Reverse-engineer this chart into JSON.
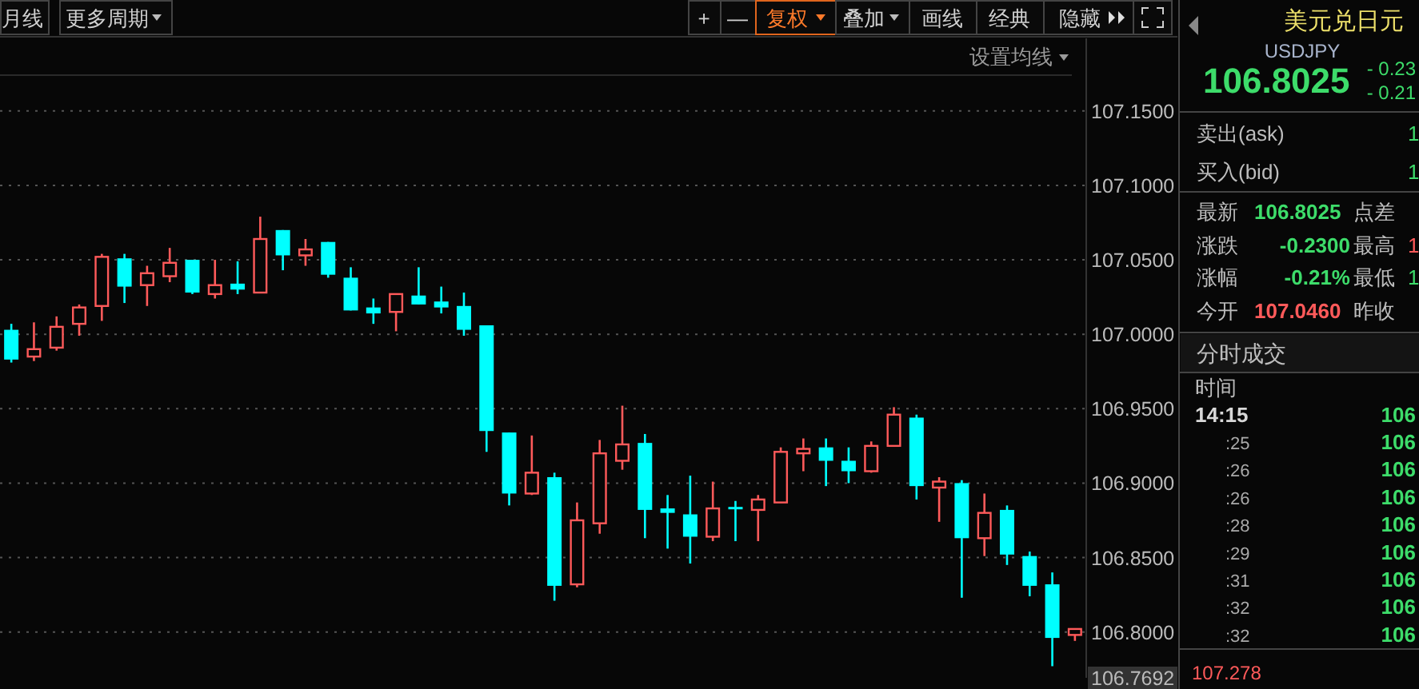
{
  "chart_data": [
    {
      "type": "candlestick",
      "categories": [
        null,
        null,
        null,
        null,
        null,
        null,
        null,
        null,
        null,
        null,
        null,
        null,
        null,
        null,
        null,
        null,
        null,
        null,
        null,
        null,
        null,
        null,
        null,
        null,
        null,
        null,
        null,
        null,
        null,
        null,
        null,
        null,
        null,
        null,
        null,
        null,
        null,
        null,
        null,
        null,
        null,
        null,
        null,
        null,
        null,
        null,
        null,
        null
      ],
      "ohlc": [
        [
          107.003,
          107.007,
          106.981,
          106.983
        ],
        [
          106.985,
          107.008,
          106.982,
          106.99
        ],
        [
          106.991,
          107.012,
          106.989,
          107.005
        ],
        [
          107.007,
          107.02,
          106.999,
          107.018
        ],
        [
          107.019,
          107.054,
          107.009,
          107.052
        ],
        [
          107.051,
          107.054,
          107.021,
          107.032
        ],
        [
          107.033,
          107.046,
          107.019,
          107.041
        ],
        [
          107.039,
          107.058,
          107.035,
          107.048
        ],
        [
          107.05,
          107.05,
          107.027,
          107.028
        ],
        [
          107.027,
          107.05,
          107.024,
          107.033
        ],
        [
          107.034,
          107.049,
          107.027,
          107.03
        ],
        [
          107.028,
          107.079,
          107.028,
          107.064
        ],
        [
          107.07,
          107.07,
          107.043,
          107.053
        ],
        [
          107.053,
          107.064,
          107.046,
          107.057
        ],
        [
          107.062,
          107.062,
          107.038,
          107.04
        ],
        [
          107.038,
          107.045,
          107.016,
          107.016
        ],
        [
          107.018,
          107.024,
          107.007,
          107.014
        ],
        [
          107.015,
          107.027,
          107.002,
          107.027
        ],
        [
          107.026,
          107.045,
          107.02,
          107.02
        ],
        [
          107.022,
          107.032,
          107.014,
          107.018
        ],
        [
          107.019,
          107.028,
          106.999,
          107.003
        ],
        [
          107.006,
          107.006,
          106.921,
          106.935
        ],
        [
          106.934,
          106.934,
          106.885,
          106.893
        ],
        [
          106.893,
          106.932,
          106.892,
          106.907
        ],
        [
          106.904,
          106.907,
          106.821,
          106.831
        ],
        [
          106.832,
          106.887,
          106.83,
          106.875
        ],
        [
          106.873,
          106.929,
          106.866,
          106.92
        ],
        [
          106.915,
          106.952,
          106.909,
          106.926
        ],
        [
          106.927,
          106.933,
          106.863,
          106.882
        ],
        [
          106.883,
          106.892,
          106.856,
          106.88
        ],
        [
          106.879,
          106.905,
          106.846,
          106.864
        ],
        [
          106.864,
          106.901,
          106.861,
          106.883
        ],
        [
          106.884,
          106.888,
          106.861,
          106.883
        ],
        [
          106.882,
          106.892,
          106.861,
          106.889
        ],
        [
          106.887,
          106.924,
          106.887,
          106.921
        ],
        [
          106.92,
          106.93,
          106.908,
          106.923
        ],
        [
          106.924,
          106.93,
          106.898,
          106.915
        ],
        [
          106.915,
          106.924,
          106.9,
          106.908
        ],
        [
          106.908,
          106.928,
          106.907,
          106.925
        ],
        [
          106.925,
          106.951,
          106.925,
          106.946
        ],
        [
          106.944,
          106.946,
          106.889,
          106.898
        ],
        [
          106.897,
          106.904,
          106.874,
          106.901
        ],
        [
          106.9,
          106.902,
          106.823,
          106.863
        ],
        [
          106.863,
          106.893,
          106.851,
          106.88
        ],
        [
          106.882,
          106.885,
          106.845,
          106.852
        ],
        [
          106.851,
          106.854,
          106.824,
          106.831
        ],
        [
          106.832,
          106.84,
          106.777,
          106.796
        ],
        [
          106.798,
          106.802,
          106.794,
          106.802
        ]
      ],
      "colors": [
        "#00ffff",
        "#ff5a5a",
        "#ff5a5a",
        "#ff5a5a",
        "#ff5a5a",
        "#00ffff",
        "#ff5a5a",
        "#ff5a5a",
        "#00ffff",
        "#ff5a5a",
        "#00ffff",
        "#ff5a5a",
        "#00ffff",
        "#ff5a5a",
        "#00ffff",
        "#00ffff",
        "#00ffff",
        "#ff5a5a",
        "#00ffff",
        "#00ffff",
        "#00ffff",
        "#00ffff",
        "#00ffff",
        "#ff5a5a",
        "#00ffff",
        "#ff5a5a",
        "#ff5a5a",
        "#ff5a5a",
        "#00ffff",
        "#00ffff",
        "#00ffff",
        "#ff5a5a",
        "#00ffff",
        "#ff5a5a",
        "#ff5a5a",
        "#ff5a5a",
        "#00ffff",
        "#00ffff",
        "#ff5a5a",
        "#ff5a5a",
        "#00ffff",
        "#ff5a5a",
        "#00ffff",
        "#ff5a5a",
        "#00ffff",
        "#00ffff",
        "#00ffff",
        "#ff5a5a"
      ],
      "ylim": [
        106.7692,
        107.173
      ],
      "yticks": [
        {
          "value": 107.15,
          "label": "107.1500"
        },
        {
          "value": 107.1,
          "label": "107.1000"
        },
        {
          "value": 107.05,
          "label": "107.0500"
        },
        {
          "value": 107.0,
          "label": "107.0000"
        },
        {
          "value": 106.95,
          "label": "106.9500"
        },
        {
          "value": 106.9,
          "label": "106.9000"
        },
        {
          "value": 106.85,
          "label": "106.8500"
        },
        {
          "value": 106.8,
          "label": "106.8000"
        },
        {
          "value": 106.7692,
          "label": "106.7692"
        }
      ],
      "grid": "y",
      "tick_labels": "y",
      "annotations": [
        "月线",
        "更多周期",
        "+",
        "—",
        "复权",
        "叠加",
        "画线",
        "经典",
        "隐藏",
        "设置均线"
      ]
    },
    {
      "type": "other",
      "title": "美元兑日元",
      "subtitle": "USDJPY",
      "annotations": [
        "106.8025",
        "- 0.23",
        "- 0.21",
        "卖出(ask)",
        "1",
        "买入(bid)",
        "1",
        "最新",
        "106.8025",
        "点差",
        "涨跌",
        "-0.2300",
        "最高",
        "1",
        "涨幅",
        "-0.21%",
        "最低",
        "1",
        "今开",
        "107.0460",
        "昨收",
        "分时成交",
        "时间",
        "14:15",
        "106",
        ":25",
        "106",
        ":26",
        "106",
        ":26",
        "106",
        ":28",
        "106",
        ":29",
        "106",
        ":31",
        "106",
        ":32",
        "106",
        ":32",
        "106",
        "107.278"
      ]
    }
  ]
}
